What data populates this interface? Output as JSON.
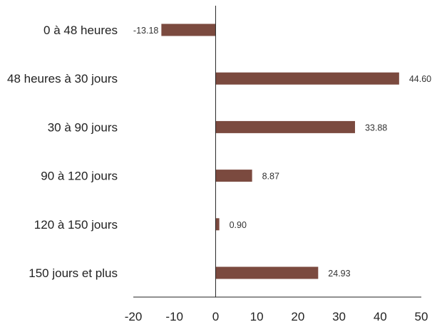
{
  "chart_data": {
    "type": "bar",
    "orientation": "horizontal",
    "title": "",
    "xlabel": "",
    "ylabel": "",
    "categories": [
      "0 à 48 heures",
      "48 heures à 30 jours",
      "30 à 90 jours",
      "90 à 120 jours",
      "120 à 150 jours",
      "150 jours et plus"
    ],
    "values": [
      -13.18,
      44.6,
      33.88,
      8.87,
      0.9,
      24.93
    ],
    "value_labels": [
      "-13.18",
      "44.60",
      "33.88",
      "8.87",
      "0.90",
      "24.93"
    ],
    "xlim": [
      -20,
      50
    ],
    "xticks": [
      -20,
      -10,
      0,
      10,
      20,
      30,
      40,
      50
    ],
    "xtick_labels": [
      "-20",
      "-10",
      "0",
      "10",
      "20",
      "30",
      "40",
      "50"
    ],
    "grid": false,
    "legend": "none",
    "bar_color": "#7b4a3f",
    "axis_color": "#222222"
  }
}
